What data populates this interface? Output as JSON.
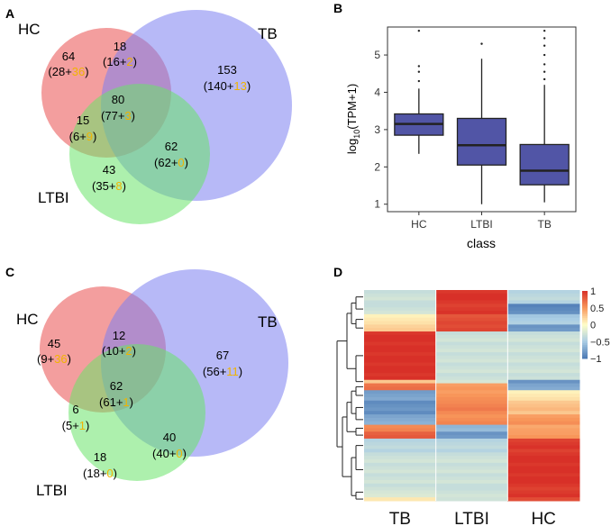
{
  "panels": {
    "A": {
      "letter": "A",
      "labels": {
        "hc": "HC",
        "tb": "TB",
        "ltbi": "LTBI"
      },
      "regions": {
        "hc_only": {
          "total": "64",
          "a": "28",
          "b": "36"
        },
        "hc_tb": {
          "total": "18",
          "a": "16",
          "b": "2"
        },
        "tb_only": {
          "total": "153",
          "a": "140",
          "b": "13"
        },
        "all": {
          "total": "80",
          "a": "77",
          "b": "3"
        },
        "hc_ltbi": {
          "total": "15",
          "a": "6",
          "b": "9"
        },
        "tb_ltbi": {
          "total": "62",
          "a": "62",
          "b": "0"
        },
        "ltbi_only": {
          "total": "43",
          "a": "35",
          "b": "8"
        }
      }
    },
    "C": {
      "letter": "C",
      "labels": {
        "hc": "HC",
        "tb": "TB",
        "ltbi": "LTBI"
      },
      "regions": {
        "hc_only": {
          "total": "45",
          "a": "9",
          "b": "36"
        },
        "hc_tb": {
          "total": "12",
          "a": "10",
          "b": "2"
        },
        "tb_only": {
          "total": "67",
          "a": "56",
          "b": "11"
        },
        "all": {
          "total": "62",
          "a": "61",
          "b": "1"
        },
        "hc_ltbi": {
          "total": "6",
          "a": "5",
          "b": "1"
        },
        "tb_ltbi": {
          "total": "40",
          "a": "40",
          "b": "0"
        },
        "ltbi_only": {
          "total": "18",
          "a": "18",
          "b": "0"
        }
      }
    },
    "B": {
      "letter": "B",
      "chart_data": {
        "type": "box",
        "xlabel": "class",
        "ylabel_main": "log",
        "ylabel_sub": "10",
        "ylabel_rest": "(TPM+1)",
        "categories": [
          "HC",
          "LTBI",
          "TB"
        ],
        "yticks": [
          "1",
          "2",
          "3",
          "4",
          "5"
        ],
        "ylim": [
          0.8,
          5.75
        ],
        "color": "#5155a6",
        "boxes": [
          {
            "category": "HC",
            "whisker_low": 2.35,
            "q1": 2.85,
            "median": 3.15,
            "q3": 3.42,
            "whisker_high": 4.1,
            "outliers": [
              4.3,
              4.55,
              4.7,
              5.65
            ]
          },
          {
            "category": "LTBI",
            "whisker_low": 1.0,
            "q1": 2.05,
            "median": 2.58,
            "q3": 3.3,
            "whisker_high": 4.9,
            "outliers": [
              5.3
            ]
          },
          {
            "category": "TB",
            "whisker_low": 1.05,
            "q1": 1.52,
            "median": 1.9,
            "q3": 2.6,
            "whisker_high": 4.2,
            "outliers": [
              4.35,
              4.55,
              4.75,
              5.0,
              5.25,
              5.45,
              5.65
            ]
          }
        ]
      }
    },
    "D": {
      "letter": "D",
      "chart_data": {
        "type": "heatmap",
        "columns": [
          "TB",
          "LTBI",
          "HC"
        ],
        "scale_ticks": [
          "1",
          "0.5",
          "0",
          "−0.5",
          "−1"
        ],
        "scale_values": [
          1,
          0.5,
          0,
          -0.5,
          -1
        ],
        "row_blocks": [
          {
            "rows": 4,
            "values": [
              -0.3,
              1.0,
              -0.4
            ]
          },
          {
            "rows": 3,
            "values": [
              -0.3,
              0.95,
              -0.9
            ]
          },
          {
            "rows": 3,
            "values": [
              0.1,
              0.85,
              -0.5
            ]
          },
          {
            "rows": 2,
            "values": [
              0.25,
              0.9,
              -0.8
            ]
          },
          {
            "rows": 14,
            "values": [
              1.0,
              -0.3,
              -0.3
            ]
          },
          {
            "rows": 1,
            "values": [
              0.3,
              -0.2,
              -0.8
            ]
          },
          {
            "rows": 2,
            "values": [
              0.7,
              0.5,
              -0.7
            ]
          },
          {
            "rows": 3,
            "values": [
              -0.75,
              0.5,
              0.1
            ]
          },
          {
            "rows": 4,
            "values": [
              -0.85,
              0.6,
              0.3
            ]
          },
          {
            "rows": 3,
            "values": [
              -0.7,
              0.55,
              0.5
            ]
          },
          {
            "rows": 2,
            "values": [
              0.6,
              -0.6,
              0.45
            ]
          },
          {
            "rows": 2,
            "values": [
              0.8,
              -0.8,
              0.5
            ]
          },
          {
            "rows": 4,
            "values": [
              -0.4,
              -0.4,
              0.95
            ]
          },
          {
            "rows": 10,
            "values": [
              -0.3,
              -0.3,
              1.0
            ]
          },
          {
            "rows": 3,
            "values": [
              -0.25,
              -0.3,
              0.95
            ]
          },
          {
            "rows": 1,
            "values": [
              0.15,
              -0.25,
              0.9
            ]
          }
        ]
      }
    }
  }
}
